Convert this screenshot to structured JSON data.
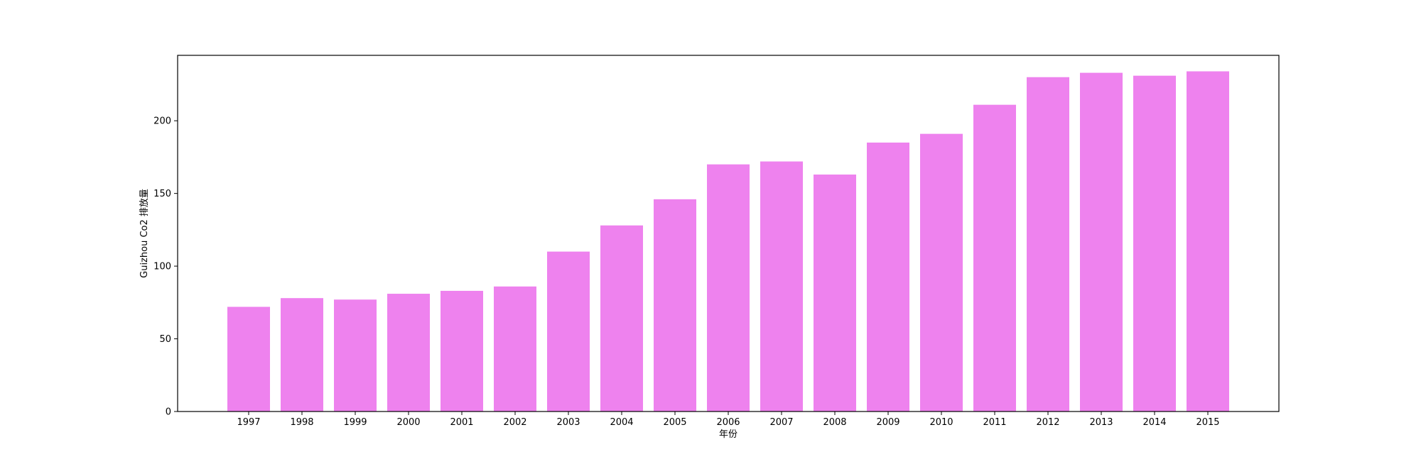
{
  "chart_data": {
    "type": "bar",
    "title": "",
    "xlabel": "年份",
    "ylabel": "Guizhou Co2 排放量",
    "categories": [
      "1997",
      "1998",
      "1999",
      "2000",
      "2001",
      "2002",
      "2003",
      "2004",
      "2005",
      "2006",
      "2007",
      "2008",
      "2009",
      "2010",
      "2011",
      "2012",
      "2013",
      "2014",
      "2015"
    ],
    "values": [
      72,
      78,
      77,
      81,
      83,
      86,
      110,
      128,
      146,
      170,
      172,
      163,
      185,
      191,
      211,
      230,
      233,
      231,
      234
    ],
    "ylim": [
      0,
      245
    ],
    "yticks": [
      0,
      50,
      100,
      150,
      200
    ],
    "grid": false,
    "bar_color": "#ee82ee"
  }
}
